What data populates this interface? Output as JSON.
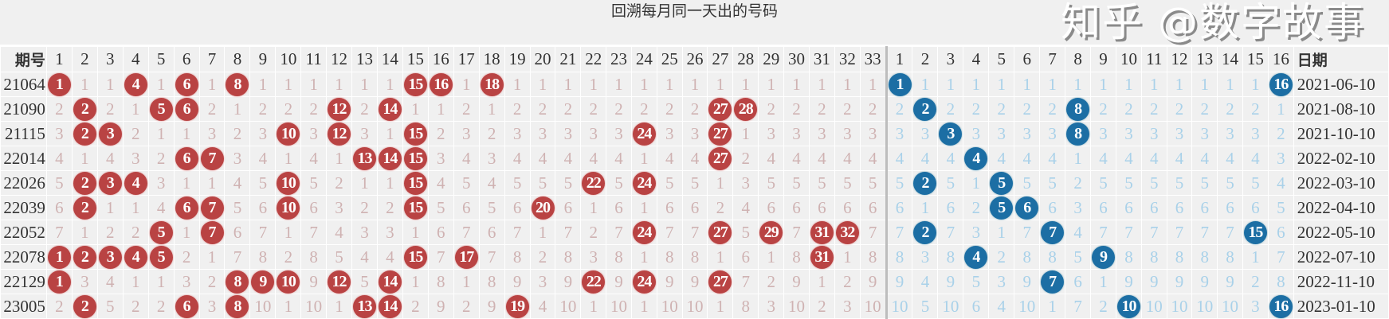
{
  "title": "回溯每月同一天出的号码",
  "header": {
    "issue": "期号",
    "date": "日期"
  },
  "red_columns": [
    1,
    2,
    3,
    4,
    5,
    6,
    7,
    8,
    9,
    10,
    11,
    12,
    13,
    14,
    15,
    16,
    17,
    18,
    19,
    20,
    21,
    22,
    23,
    24,
    25,
    26,
    27,
    28,
    29,
    30,
    31,
    32,
    33
  ],
  "blue_columns": [
    1,
    2,
    3,
    4,
    5,
    6,
    7,
    8,
    9,
    10,
    11,
    12,
    13,
    14,
    15,
    16
  ],
  "colors": {
    "red_ball": "#b94343",
    "blue_ball": "#1c6ea4",
    "red_miss": "#cfb2b2",
    "blue_miss": "#a9d1e9",
    "background": "#f0f0f0"
  },
  "rows": [
    {
      "issue": "21064",
      "date": "2021-06-10",
      "red": [
        1,
        1,
        1,
        4,
        1,
        6,
        1,
        8,
        1,
        1,
        1,
        1,
        1,
        1,
        15,
        16,
        1,
        18,
        1,
        1,
        1,
        1,
        1,
        1,
        1,
        1,
        1,
        1,
        1,
        1,
        1,
        1,
        1
      ],
      "blue": [
        1,
        1,
        1,
        1,
        1,
        1,
        1,
        1,
        1,
        1,
        1,
        1,
        1,
        1,
        1,
        16
      ]
    },
    {
      "issue": "21090",
      "date": "2021-08-10",
      "red": [
        2,
        2,
        2,
        1,
        5,
        6,
        2,
        1,
        2,
        2,
        2,
        12,
        2,
        14,
        1,
        1,
        2,
        1,
        2,
        2,
        2,
        2,
        2,
        2,
        2,
        2,
        27,
        28,
        2,
        2,
        2,
        2,
        2
      ],
      "blue": [
        2,
        2,
        2,
        2,
        2,
        2,
        2,
        8,
        2,
        2,
        2,
        2,
        2,
        2,
        2,
        1
      ]
    },
    {
      "issue": "21115",
      "date": "2021-10-10",
      "red": [
        3,
        2,
        3,
        2,
        1,
        1,
        3,
        2,
        3,
        10,
        3,
        12,
        3,
        1,
        15,
        2,
        3,
        2,
        3,
        3,
        3,
        3,
        3,
        24,
        3,
        3,
        27,
        1,
        3,
        3,
        3,
        3,
        3
      ],
      "blue": [
        3,
        3,
        3,
        3,
        3,
        3,
        3,
        8,
        3,
        3,
        3,
        3,
        3,
        3,
        3,
        2
      ]
    },
    {
      "issue": "22014",
      "date": "2022-02-10",
      "red": [
        4,
        1,
        4,
        3,
        2,
        6,
        7,
        3,
        4,
        1,
        4,
        1,
        13,
        14,
        15,
        3,
        4,
        3,
        4,
        4,
        4,
        4,
        4,
        1,
        4,
        4,
        27,
        2,
        4,
        4,
        4,
        4,
        4
      ],
      "blue": [
        4,
        4,
        4,
        4,
        4,
        4,
        4,
        1,
        4,
        4,
        4,
        4,
        4,
        4,
        4,
        3
      ]
    },
    {
      "issue": "22026",
      "date": "2022-03-10",
      "red": [
        5,
        2,
        3,
        4,
        3,
        1,
        1,
        4,
        5,
        10,
        5,
        2,
        1,
        1,
        15,
        4,
        5,
        4,
        5,
        5,
        5,
        22,
        5,
        24,
        5,
        5,
        1,
        3,
        5,
        5,
        5,
        5,
        5
      ],
      "blue": [
        5,
        2,
        5,
        1,
        5,
        5,
        5,
        2,
        5,
        5,
        5,
        5,
        5,
        5,
        5,
        4
      ]
    },
    {
      "issue": "22039",
      "date": "2022-04-10",
      "red": [
        6,
        2,
        1,
        1,
        4,
        6,
        7,
        5,
        6,
        10,
        6,
        3,
        2,
        2,
        15,
        5,
        6,
        5,
        6,
        20,
        6,
        1,
        6,
        1,
        6,
        6,
        2,
        4,
        6,
        6,
        6,
        6,
        6
      ],
      "blue": [
        6,
        1,
        6,
        2,
        5,
        6,
        6,
        3,
        6,
        6,
        6,
        6,
        6,
        6,
        6,
        5
      ]
    },
    {
      "issue": "22052",
      "date": "2022-05-10",
      "red": [
        7,
        1,
        2,
        2,
        5,
        1,
        7,
        6,
        7,
        1,
        7,
        4,
        3,
        3,
        1,
        6,
        7,
        6,
        7,
        1,
        7,
        2,
        7,
        24,
        7,
        7,
        27,
        5,
        29,
        7,
        31,
        32,
        7
      ],
      "blue": [
        7,
        2,
        7,
        3,
        1,
        7,
        7,
        4,
        7,
        7,
        7,
        7,
        7,
        7,
        15,
        6
      ]
    },
    {
      "issue": "22078",
      "date": "2022-07-10",
      "red": [
        1,
        2,
        3,
        4,
        5,
        2,
        1,
        7,
        8,
        2,
        8,
        5,
        4,
        4,
        15,
        7,
        17,
        7,
        8,
        2,
        8,
        3,
        8,
        1,
        8,
        8,
        1,
        6,
        1,
        8,
        31,
        1,
        8
      ],
      "blue": [
        8,
        3,
        8,
        4,
        2,
        8,
        8,
        5,
        9,
        8,
        8,
        8,
        8,
        8,
        1,
        7
      ]
    },
    {
      "issue": "22129",
      "date": "2022-11-10",
      "red": [
        1,
        3,
        4,
        1,
        1,
        3,
        2,
        8,
        9,
        10,
        9,
        12,
        5,
        14,
        1,
        8,
        1,
        8,
        9,
        3,
        9,
        22,
        9,
        24,
        9,
        9,
        27,
        7,
        2,
        9,
        1,
        2,
        9
      ],
      "blue": [
        9,
        4,
        9,
        5,
        3,
        9,
        7,
        6,
        1,
        9,
        9,
        9,
        9,
        9,
        2,
        8
      ]
    },
    {
      "issue": "23005",
      "date": "2023-01-10",
      "red": [
        2,
        2,
        5,
        2,
        2,
        6,
        3,
        8,
        10,
        1,
        10,
        1,
        13,
        14,
        2,
        9,
        2,
        9,
        19,
        4,
        10,
        1,
        10,
        1,
        10,
        10,
        1,
        8,
        3,
        10,
        2,
        3,
        10
      ],
      "blue": [
        10,
        5,
        10,
        6,
        4,
        10,
        1,
        7,
        2,
        10,
        10,
        10,
        10,
        10,
        3,
        16
      ]
    }
  ],
  "watermark": "知乎 @数字故事"
}
